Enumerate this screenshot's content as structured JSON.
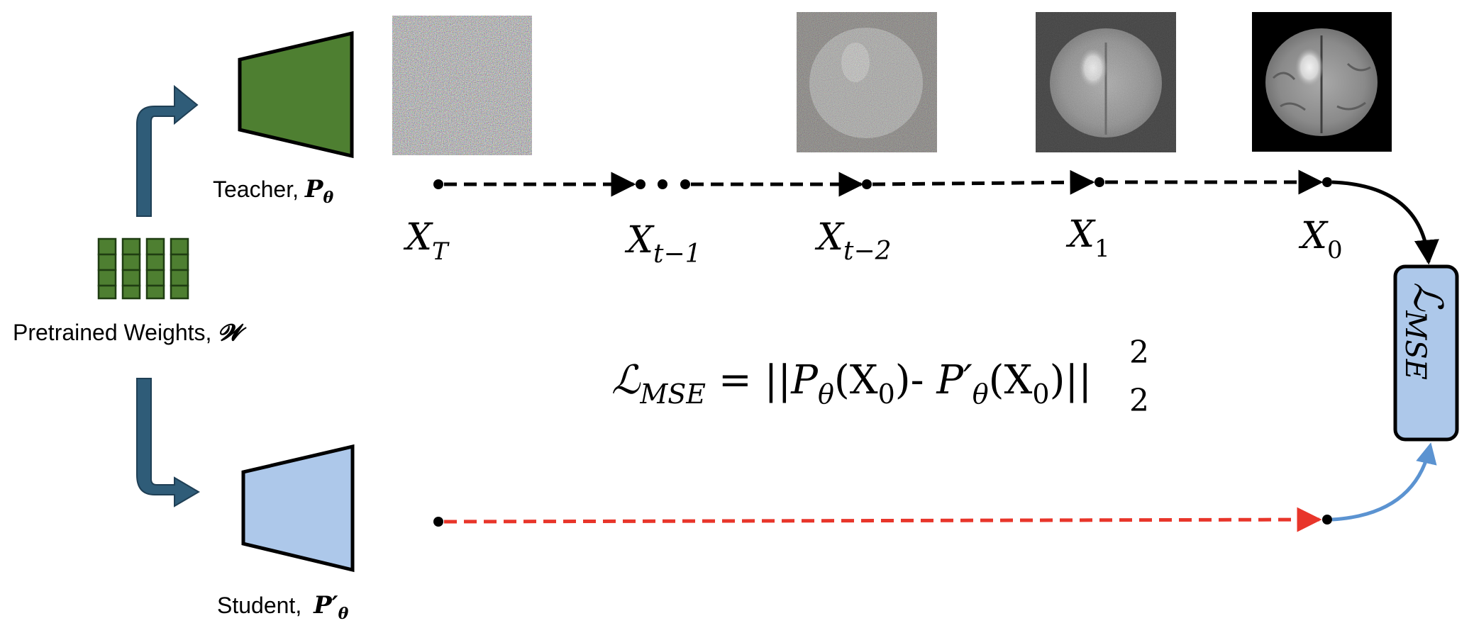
{
  "labels": {
    "teacher": "Teacher, ",
    "teacher_sym": "P",
    "teacher_sub": "θ",
    "student": "Student, ",
    "student_sym": "P′",
    "student_sub": "θ",
    "weights": "Pretrained Weights, ",
    "weights_sym": "𝓦"
  },
  "states": {
    "xT": {
      "base": "X",
      "sub": "T"
    },
    "xt1": {
      "base": "X",
      "sub": "t−1"
    },
    "xt2": {
      "base": "X",
      "sub": "t−2"
    },
    "x1": {
      "base": "X",
      "sub": "1"
    },
    "x0": {
      "base": "X",
      "sub": "0"
    }
  },
  "loss_box": {
    "symbol": "ℒ",
    "sub": "MSE"
  },
  "equation": {
    "lhs": "ℒ",
    "lhs_sub": "MSE",
    "eq": " = ||",
    "p1": "P",
    "p1_sub": "θ",
    "arg1": "(X",
    "arg1_sub": "0",
    "mid": ")- ",
    "p2": "P′",
    "p2_sub": "θ",
    "arg2": "(X",
    "arg2_sub": "0",
    "end": ")||",
    "sup": "2",
    "sub": "2"
  },
  "colors": {
    "teacher_fill": "#4e7f31",
    "student_fill": "#adc8ea",
    "arrow_fill": "#2f5c78",
    "weights_fill": "#4e7f31",
    "loss_box_fill": "#adc8ea",
    "student_path": "#e8352a",
    "student_curve": "#5b93d1"
  }
}
